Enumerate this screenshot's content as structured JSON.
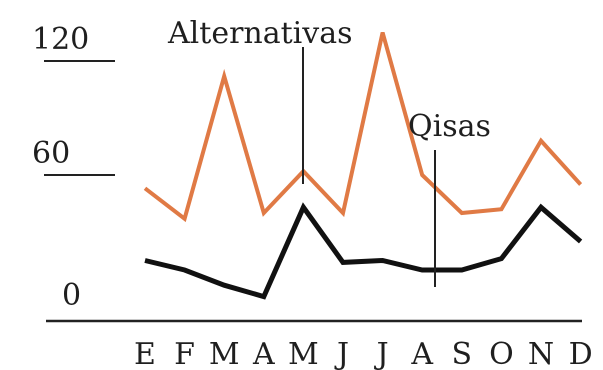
{
  "chart_data": {
    "type": "line",
    "categories": [
      "E",
      "F",
      "M",
      "A",
      "M",
      "J",
      "J",
      "A",
      "S",
      "O",
      "N",
      "D"
    ],
    "series": [
      {
        "values": [
          53,
          37,
          112,
          40,
          62,
          40,
          135,
          60,
          40,
          42,
          78,
          55
        ],
        "color": "#e07a45"
      },
      {
        "values": [
          15,
          10,
          2,
          -4,
          43,
          14,
          15,
          10,
          10,
          16,
          43,
          25
        ],
        "color": "#111111"
      }
    ],
    "yticks": [
      {
        "value": 120,
        "label": "120"
      },
      {
        "value": 60,
        "label": "60"
      },
      {
        "value": 0,
        "label": "0"
      }
    ],
    "ylim": [
      0,
      140
    ],
    "annotations": [
      {
        "label": "Alternativas",
        "category_index": 4
      },
      {
        "label": "Qisas",
        "category_index": 8
      }
    ],
    "grid": false,
    "legend": "none"
  }
}
